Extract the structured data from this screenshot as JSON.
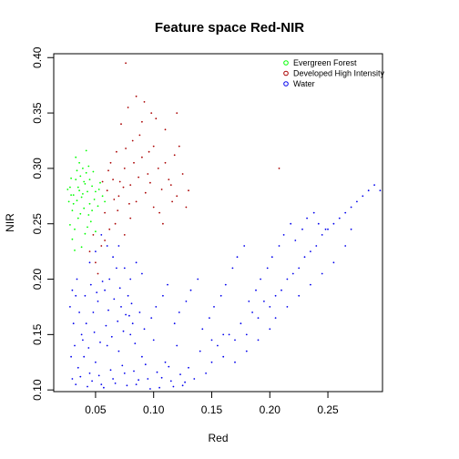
{
  "chart_data": {
    "type": "scatter",
    "title": "Feature space Red-NIR",
    "xlabel": "Red",
    "ylabel": "NIR",
    "xlim": [
      0.014,
      0.297
    ],
    "ylim": [
      0.0985,
      0.4035
    ],
    "x_ticks": [
      0.05,
      0.1,
      0.15,
      0.2,
      0.25
    ],
    "x_tick_labels": [
      "0.05",
      "0.10",
      "0.15",
      "0.20",
      "0.25"
    ],
    "y_ticks": [
      0.1,
      0.15,
      0.2,
      0.25,
      0.3,
      0.35,
      0.4
    ],
    "y_tick_labels": [
      "0.10",
      "0.15",
      "0.20",
      "0.25",
      "0.30",
      "0.35",
      "0.40"
    ],
    "grid": false,
    "legend_position": "top-right",
    "series": [
      {
        "name": "Evergreen Forest",
        "color": "#00ff00",
        "points": [
          [
            0.028,
            0.283
          ],
          [
            0.031,
            0.276
          ],
          [
            0.034,
            0.271
          ],
          [
            0.036,
            0.28
          ],
          [
            0.038,
            0.274
          ],
          [
            0.041,
            0.286
          ],
          [
            0.043,
            0.279
          ],
          [
            0.045,
            0.268
          ],
          [
            0.03,
            0.262
          ],
          [
            0.033,
            0.29
          ],
          [
            0.037,
            0.293
          ],
          [
            0.04,
            0.264
          ],
          [
            0.044,
            0.258
          ],
          [
            0.047,
            0.284
          ],
          [
            0.049,
            0.272
          ],
          [
            0.027,
            0.27
          ],
          [
            0.029,
            0.291
          ],
          [
            0.035,
            0.255
          ],
          [
            0.039,
            0.3
          ],
          [
            0.042,
            0.296
          ],
          [
            0.046,
            0.252
          ],
          [
            0.05,
            0.279
          ],
          [
            0.032,
            0.245
          ],
          [
            0.036,
            0.305
          ],
          [
            0.041,
            0.241
          ],
          [
            0.044,
            0.302
          ],
          [
            0.052,
            0.266
          ],
          [
            0.054,
            0.287
          ],
          [
            0.03,
            0.236
          ],
          [
            0.038,
            0.229
          ],
          [
            0.026,
            0.281
          ],
          [
            0.033,
            0.31
          ],
          [
            0.048,
            0.297
          ],
          [
            0.056,
            0.275
          ],
          [
            0.043,
            0.247
          ],
          [
            0.035,
            0.283
          ],
          [
            0.039,
            0.277
          ],
          [
            0.031,
            0.268
          ],
          [
            0.047,
            0.262
          ],
          [
            0.034,
            0.298
          ],
          [
            0.04,
            0.288
          ],
          [
            0.037,
            0.259
          ],
          [
            0.029,
            0.276
          ],
          [
            0.045,
            0.29
          ],
          [
            0.053,
            0.281
          ],
          [
            0.028,
            0.249
          ],
          [
            0.058,
            0.27
          ],
          [
            0.032,
            0.226
          ],
          [
            0.042,
            0.316
          ],
          [
            0.05,
            0.243
          ]
        ]
      },
      {
        "name": "Developed High Intensity",
        "color": "#aa0000",
        "points": [
          [
            0.06,
            0.28
          ],
          [
            0.065,
            0.29
          ],
          [
            0.07,
            0.275
          ],
          [
            0.075,
            0.3
          ],
          [
            0.08,
            0.285
          ],
          [
            0.085,
            0.27
          ],
          [
            0.09,
            0.31
          ],
          [
            0.095,
            0.295
          ],
          [
            0.1,
            0.32
          ],
          [
            0.105,
            0.26
          ],
          [
            0.11,
            0.305
          ],
          [
            0.115,
            0.285
          ],
          [
            0.12,
            0.275
          ],
          [
            0.072,
            0.34
          ],
          [
            0.078,
            0.355
          ],
          [
            0.085,
            0.365
          ],
          [
            0.092,
            0.36
          ],
          [
            0.098,
            0.35
          ],
          [
            0.102,
            0.345
          ],
          [
            0.088,
            0.33
          ],
          [
            0.082,
            0.325
          ],
          [
            0.068,
            0.315
          ],
          [
            0.063,
            0.305
          ],
          [
            0.058,
            0.26
          ],
          [
            0.062,
            0.245
          ],
          [
            0.067,
            0.25
          ],
          [
            0.075,
            0.24
          ],
          [
            0.08,
            0.255
          ],
          [
            0.055,
            0.23
          ],
          [
            0.05,
            0.215
          ],
          [
            0.045,
            0.225
          ],
          [
            0.052,
            0.205
          ],
          [
            0.058,
            0.235
          ],
          [
            0.048,
            0.24
          ],
          [
            0.11,
            0.335
          ],
          [
            0.125,
            0.295
          ],
          [
            0.13,
            0.28
          ],
          [
            0.108,
            0.25
          ],
          [
            0.1,
            0.265
          ],
          [
            0.093,
            0.278
          ],
          [
            0.087,
            0.292
          ],
          [
            0.079,
            0.268
          ],
          [
            0.071,
            0.288
          ],
          [
            0.066,
            0.272
          ],
          [
            0.096,
            0.315
          ],
          [
            0.104,
            0.3
          ],
          [
            0.113,
            0.29
          ],
          [
            0.118,
            0.312
          ],
          [
            0.122,
            0.32
          ],
          [
            0.128,
            0.265
          ],
          [
            0.09,
            0.342
          ],
          [
            0.076,
            0.318
          ],
          [
            0.056,
            0.288
          ],
          [
            0.061,
            0.298
          ],
          [
            0.083,
            0.305
          ],
          [
            0.097,
            0.287
          ],
          [
            0.107,
            0.281
          ],
          [
            0.116,
            0.27
          ],
          [
            0.069,
            0.262
          ],
          [
            0.074,
            0.283
          ],
          [
            0.076,
            0.395
          ],
          [
            0.208,
            0.3
          ],
          [
            0.12,
            0.35
          ]
        ]
      },
      {
        "name": "Water",
        "color": "#0000ee",
        "points": [
          [
            0.03,
            0.11
          ],
          [
            0.035,
            0.12
          ],
          [
            0.04,
            0.13
          ],
          [
            0.045,
            0.115
          ],
          [
            0.05,
            0.125
          ],
          [
            0.055,
            0.105
          ],
          [
            0.06,
            0.14
          ],
          [
            0.065,
            0.11
          ],
          [
            0.07,
            0.135
          ],
          [
            0.075,
            0.115
          ],
          [
            0.08,
            0.15
          ],
          [
            0.085,
            0.105
          ],
          [
            0.09,
            0.13
          ],
          [
            0.095,
            0.11
          ],
          [
            0.1,
            0.145
          ],
          [
            0.105,
            0.102
          ],
          [
            0.11,
            0.125
          ],
          [
            0.115,
            0.108
          ],
          [
            0.12,
            0.14
          ],
          [
            0.125,
            0.104
          ],
          [
            0.13,
            0.12
          ],
          [
            0.135,
            0.11
          ],
          [
            0.14,
            0.135
          ],
          [
            0.145,
            0.115
          ],
          [
            0.15,
            0.125
          ],
          [
            0.155,
            0.14
          ],
          [
            0.16,
            0.13
          ],
          [
            0.165,
            0.15
          ],
          [
            0.17,
            0.145
          ],
          [
            0.175,
            0.16
          ],
          [
            0.18,
            0.15
          ],
          [
            0.185,
            0.17
          ],
          [
            0.19,
            0.165
          ],
          [
            0.195,
            0.18
          ],
          [
            0.2,
            0.175
          ],
          [
            0.205,
            0.185
          ],
          [
            0.21,
            0.19
          ],
          [
            0.215,
            0.2
          ],
          [
            0.22,
            0.205
          ],
          [
            0.225,
            0.21
          ],
          [
            0.23,
            0.22
          ],
          [
            0.235,
            0.225
          ],
          [
            0.24,
            0.23
          ],
          [
            0.245,
            0.24
          ],
          [
            0.25,
            0.245
          ],
          [
            0.255,
            0.25
          ],
          [
            0.26,
            0.255
          ],
          [
            0.265,
            0.26
          ],
          [
            0.27,
            0.265
          ],
          [
            0.275,
            0.27
          ],
          [
            0.28,
            0.275
          ],
          [
            0.285,
            0.28
          ],
          [
            0.29,
            0.285
          ],
          [
            0.295,
            0.28
          ],
          [
            0.032,
            0.14
          ],
          [
            0.038,
            0.15
          ],
          [
            0.042,
            0.16
          ],
          [
            0.048,
            0.17
          ],
          [
            0.052,
            0.18
          ],
          [
            0.058,
            0.19
          ],
          [
            0.062,
            0.2
          ],
          [
            0.068,
            0.21
          ],
          [
            0.072,
            0.175
          ],
          [
            0.078,
            0.185
          ],
          [
            0.082,
            0.16
          ],
          [
            0.088,
            0.17
          ],
          [
            0.092,
            0.155
          ],
          [
            0.098,
            0.165
          ],
          [
            0.102,
            0.175
          ],
          [
            0.108,
            0.185
          ],
          [
            0.112,
            0.195
          ],
          [
            0.118,
            0.16
          ],
          [
            0.122,
            0.17
          ],
          [
            0.128,
            0.18
          ],
          [
            0.132,
            0.19
          ],
          [
            0.138,
            0.2
          ],
          [
            0.142,
            0.155
          ],
          [
            0.148,
            0.165
          ],
          [
            0.152,
            0.175
          ],
          [
            0.158,
            0.185
          ],
          [
            0.162,
            0.195
          ],
          [
            0.168,
            0.21
          ],
          [
            0.172,
            0.22
          ],
          [
            0.178,
            0.23
          ],
          [
            0.182,
            0.18
          ],
          [
            0.188,
            0.19
          ],
          [
            0.192,
            0.2
          ],
          [
            0.198,
            0.21
          ],
          [
            0.202,
            0.22
          ],
          [
            0.208,
            0.23
          ],
          [
            0.212,
            0.24
          ],
          [
            0.218,
            0.25
          ],
          [
            0.222,
            0.235
          ],
          [
            0.228,
            0.245
          ],
          [
            0.232,
            0.255
          ],
          [
            0.238,
            0.26
          ],
          [
            0.242,
            0.25
          ],
          [
            0.248,
            0.245
          ],
          [
            0.045,
            0.215
          ],
          [
            0.05,
            0.225
          ],
          [
            0.055,
            0.24
          ],
          [
            0.06,
            0.23
          ],
          [
            0.065,
            0.22
          ],
          [
            0.07,
            0.23
          ],
          [
            0.075,
            0.21
          ],
          [
            0.08,
            0.2
          ],
          [
            0.085,
            0.215
          ],
          [
            0.09,
            0.205
          ],
          [
            0.033,
            0.105
          ],
          [
            0.037,
            0.112
          ],
          [
            0.043,
            0.103
          ],
          [
            0.047,
            0.108
          ],
          [
            0.053,
            0.113
          ],
          [
            0.057,
            0.102
          ],
          [
            0.063,
            0.118
          ],
          [
            0.067,
            0.106
          ],
          [
            0.073,
            0.122
          ],
          [
            0.077,
            0.104
          ],
          [
            0.083,
            0.117
          ],
          [
            0.087,
            0.109
          ],
          [
            0.093,
            0.123
          ],
          [
            0.097,
            0.101
          ],
          [
            0.103,
            0.116
          ],
          [
            0.107,
            0.111
          ],
          [
            0.113,
            0.121
          ],
          [
            0.117,
            0.103
          ],
          [
            0.123,
            0.114
          ],
          [
            0.127,
            0.107
          ],
          [
            0.039,
            0.145
          ],
          [
            0.044,
            0.138
          ],
          [
            0.049,
            0.152
          ],
          [
            0.054,
            0.143
          ],
          [
            0.059,
            0.158
          ],
          [
            0.064,
            0.148
          ],
          [
            0.069,
            0.162
          ],
          [
            0.074,
            0.153
          ],
          [
            0.079,
            0.167
          ],
          [
            0.084,
            0.142
          ],
          [
            0.036,
            0.17
          ],
          [
            0.041,
            0.185
          ],
          [
            0.046,
            0.195
          ],
          [
            0.051,
            0.188
          ],
          [
            0.056,
            0.198
          ],
          [
            0.061,
            0.172
          ],
          [
            0.066,
            0.182
          ],
          [
            0.071,
            0.192
          ],
          [
            0.076,
            0.168
          ],
          [
            0.081,
            0.178
          ],
          [
            0.15,
            0.145
          ],
          [
            0.16,
            0.15
          ],
          [
            0.17,
            0.125
          ],
          [
            0.18,
            0.135
          ],
          [
            0.19,
            0.145
          ],
          [
            0.2,
            0.155
          ],
          [
            0.205,
            0.165
          ],
          [
            0.215,
            0.175
          ],
          [
            0.225,
            0.185
          ],
          [
            0.235,
            0.195
          ],
          [
            0.245,
            0.205
          ],
          [
            0.255,
            0.215
          ],
          [
            0.265,
            0.23
          ],
          [
            0.27,
            0.245
          ],
          [
            0.03,
            0.19
          ],
          [
            0.028,
            0.175
          ],
          [
            0.034,
            0.2
          ],
          [
            0.031,
            0.16
          ],
          [
            0.029,
            0.13
          ],
          [
            0.033,
            0.185
          ]
        ]
      }
    ]
  }
}
